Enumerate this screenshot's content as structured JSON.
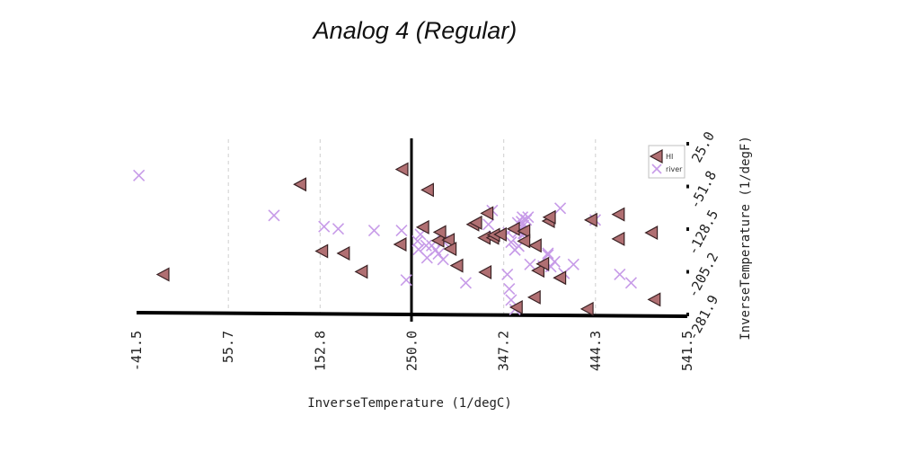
{
  "chart_data": {
    "type": "scatter",
    "title": "Analog 4 (Regular)",
    "xlabel": "InverseTemperature (1/degC)",
    "ylabel": "InverseTemperature (1/degF)",
    "xlim": [
      -41.5,
      541.5
    ],
    "ylim": [
      -281.9,
      25.0
    ],
    "x_ticks": [
      "-41.5",
      "55.7",
      "152.8",
      "250.0",
      "347.2",
      "444.3",
      "541.5"
    ],
    "y_ticks": [
      "25.0",
      "-51.8",
      "-128.5",
      "-205.2",
      "-281.9"
    ],
    "grid": true,
    "legend_position": "top-right",
    "series": [
      {
        "name": "HI",
        "marker": "triangle-left",
        "color": "#b06f72",
        "points": [
          [
            -13,
            -210
          ],
          [
            132,
            -48
          ],
          [
            155,
            -168
          ],
          [
            178,
            -172
          ],
          [
            197,
            -205
          ],
          [
            238,
            -156
          ],
          [
            240,
            -21
          ],
          [
            262,
            -125
          ],
          [
            267,
            -58
          ],
          [
            278,
            -149
          ],
          [
            280,
            -134
          ],
          [
            289,
            -148
          ],
          [
            291,
            -164
          ],
          [
            298,
            -194
          ],
          [
            315,
            -120
          ],
          [
            318,
            -117
          ],
          [
            327,
            -144
          ],
          [
            328,
            -206
          ],
          [
            330,
            -100
          ],
          [
            336,
            -144
          ],
          [
            337,
            -139
          ],
          [
            344,
            -138
          ],
          [
            358,
            -128
          ],
          [
            361,
            -269
          ],
          [
            369,
            -132
          ],
          [
            369,
            -150
          ],
          [
            380,
            -251
          ],
          [
            381,
            -158
          ],
          [
            384,
            -203
          ],
          [
            389,
            -191
          ],
          [
            395,
            -114
          ],
          [
            396,
            -107
          ],
          [
            407,
            -216
          ],
          [
            436,
            -272
          ],
          [
            440,
            -112
          ],
          [
            469,
            -146
          ],
          [
            469,
            -102
          ],
          [
            504,
            -135
          ],
          [
            507,
            -255
          ]
        ]
      },
      {
        "name": "river",
        "marker": "x",
        "color": "#c79be8",
        "points": [
          [
            -39,
            -32
          ],
          [
            104,
            -104
          ],
          [
            157,
            -124
          ],
          [
            172,
            -128
          ],
          [
            210,
            -131
          ],
          [
            239,
            -131
          ],
          [
            244,
            -220
          ],
          [
            256,
            -150
          ],
          [
            257,
            -165
          ],
          [
            259,
            -138
          ],
          [
            265,
            -158
          ],
          [
            266,
            -180
          ],
          [
            271,
            -158
          ],
          [
            275,
            -166
          ],
          [
            278,
            -173
          ],
          [
            283,
            -150
          ],
          [
            283,
            -183
          ],
          [
            307,
            -225
          ],
          [
            331,
            -120
          ],
          [
            335,
            -95
          ],
          [
            337,
            -141
          ],
          [
            351,
            -210
          ],
          [
            352,
            -135
          ],
          [
            353,
            -236
          ],
          [
            355,
            -152
          ],
          [
            355,
            -256
          ],
          [
            359,
            -273
          ],
          [
            359,
            -166
          ],
          [
            362,
            -117
          ],
          [
            363,
            -159
          ],
          [
            363,
            -133
          ],
          [
            363,
            -159
          ],
          [
            366,
            -115
          ],
          [
            367,
            -107
          ],
          [
            368,
            -136
          ],
          [
            368,
            -122
          ],
          [
            369,
            -137
          ],
          [
            371,
            -112
          ],
          [
            373,
            -107
          ],
          [
            375,
            -192
          ],
          [
            389,
            -195
          ],
          [
            394,
            -172
          ],
          [
            394,
            -175
          ],
          [
            397,
            -196
          ],
          [
            401,
            -187
          ],
          [
            407,
            -91
          ],
          [
            411,
            -208
          ],
          [
            421,
            -192
          ],
          [
            444,
            -112
          ],
          [
            470,
            -210
          ],
          [
            482,
            -225
          ]
        ]
      }
    ]
  }
}
